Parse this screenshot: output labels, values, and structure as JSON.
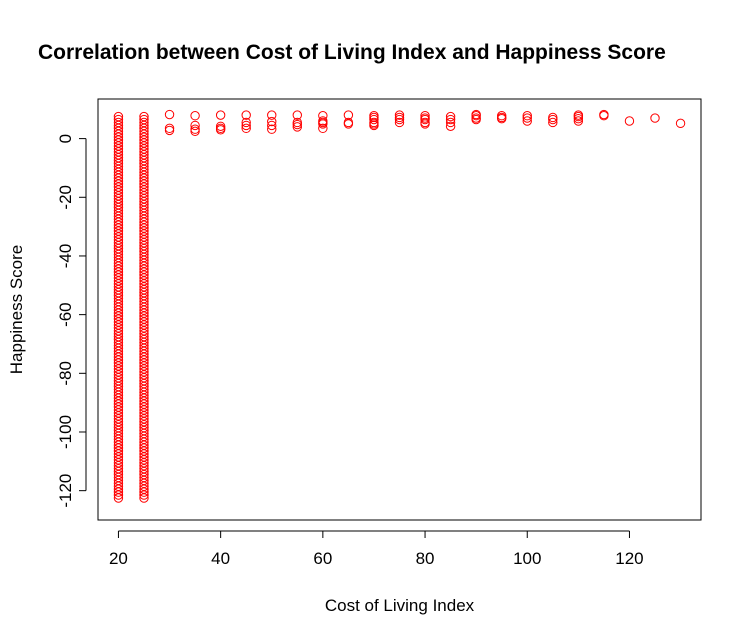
{
  "chart_data": {
    "type": "scatter",
    "title": "Correlation between Cost of Living Index and Happiness Score",
    "xlabel": "Cost of Living Index",
    "ylabel": "Happiness Score",
    "xlim": [
      16,
      134
    ],
    "ylim": [
      -130,
      13.5
    ],
    "x_ticks": [
      20,
      40,
      60,
      80,
      100,
      120
    ],
    "x_tick_labels": [
      "20",
      "40",
      "60",
      "80",
      "100",
      "120"
    ],
    "y_ticks": [
      -120,
      -100,
      -80,
      -60,
      -40,
      -20,
      0
    ],
    "y_tick_labels": [
      "-120",
      "-100",
      "-80",
      "-60",
      "-40",
      "-20",
      "0"
    ],
    "grid": false,
    "legend": "none",
    "marker": "open-circle",
    "color": "#ff0000",
    "columns": [
      {
        "x": 20,
        "y_from": -122.5,
        "y_to": 7.5,
        "step": 1.0
      },
      {
        "x": 25,
        "y_from": -122.5,
        "y_to": 7.5,
        "step": 1.0
      }
    ],
    "points": [
      {
        "x": 30,
        "y": 8.2
      },
      {
        "x": 30,
        "y": 3.5
      },
      {
        "x": 30,
        "y": 2.8
      },
      {
        "x": 35,
        "y": 7.8
      },
      {
        "x": 35,
        "y": 4.5
      },
      {
        "x": 35,
        "y": 3.2
      },
      {
        "x": 35,
        "y": 2.5
      },
      {
        "x": 40,
        "y": 8.0
      },
      {
        "x": 40,
        "y": 4.2
      },
      {
        "x": 40,
        "y": 3.5
      },
      {
        "x": 40,
        "y": 3.0
      },
      {
        "x": 45,
        "y": 8.0
      },
      {
        "x": 45,
        "y": 5.5
      },
      {
        "x": 45,
        "y": 4.5
      },
      {
        "x": 45,
        "y": 3.5
      },
      {
        "x": 50,
        "y": 8.0
      },
      {
        "x": 50,
        "y": 5.8
      },
      {
        "x": 50,
        "y": 4.5
      },
      {
        "x": 50,
        "y": 3.2
      },
      {
        "x": 55,
        "y": 8.0
      },
      {
        "x": 55,
        "y": 5.5
      },
      {
        "x": 55,
        "y": 4.8
      },
      {
        "x": 55,
        "y": 4.0
      },
      {
        "x": 60,
        "y": 7.8
      },
      {
        "x": 60,
        "y": 6.0
      },
      {
        "x": 60,
        "y": 5.5
      },
      {
        "x": 60,
        "y": 5.0
      },
      {
        "x": 60,
        "y": 3.5
      },
      {
        "x": 65,
        "y": 8.0
      },
      {
        "x": 65,
        "y": 5.5
      },
      {
        "x": 65,
        "y": 5.0
      },
      {
        "x": 70,
        "y": 7.8
      },
      {
        "x": 70,
        "y": 7.2
      },
      {
        "x": 70,
        "y": 6.5
      },
      {
        "x": 70,
        "y": 5.5
      },
      {
        "x": 70,
        "y": 5.0
      },
      {
        "x": 70,
        "y": 4.5
      },
      {
        "x": 75,
        "y": 8.0
      },
      {
        "x": 75,
        "y": 7.2
      },
      {
        "x": 75,
        "y": 6.5
      },
      {
        "x": 75,
        "y": 5.5
      },
      {
        "x": 80,
        "y": 7.8
      },
      {
        "x": 80,
        "y": 7.0
      },
      {
        "x": 80,
        "y": 6.5
      },
      {
        "x": 80,
        "y": 5.5
      },
      {
        "x": 80,
        "y": 5.0
      },
      {
        "x": 85,
        "y": 7.5
      },
      {
        "x": 85,
        "y": 6.5
      },
      {
        "x": 85,
        "y": 5.5
      },
      {
        "x": 85,
        "y": 4.2
      },
      {
        "x": 90,
        "y": 8.2
      },
      {
        "x": 90,
        "y": 7.8
      },
      {
        "x": 90,
        "y": 7.0
      },
      {
        "x": 90,
        "y": 6.5
      },
      {
        "x": 95,
        "y": 7.8
      },
      {
        "x": 95,
        "y": 7.2
      },
      {
        "x": 95,
        "y": 6.8
      },
      {
        "x": 100,
        "y": 7.8
      },
      {
        "x": 100,
        "y": 7.0
      },
      {
        "x": 100,
        "y": 6.0
      },
      {
        "x": 105,
        "y": 7.2
      },
      {
        "x": 105,
        "y": 6.5
      },
      {
        "x": 105,
        "y": 5.5
      },
      {
        "x": 110,
        "y": 8.0
      },
      {
        "x": 110,
        "y": 7.5
      },
      {
        "x": 110,
        "y": 6.8
      },
      {
        "x": 110,
        "y": 6.0
      },
      {
        "x": 115,
        "y": 8.2
      },
      {
        "x": 115,
        "y": 7.8
      },
      {
        "x": 120,
        "y": 6.0
      },
      {
        "x": 125,
        "y": 7.0
      },
      {
        "x": 130,
        "y": 5.2
      }
    ]
  }
}
